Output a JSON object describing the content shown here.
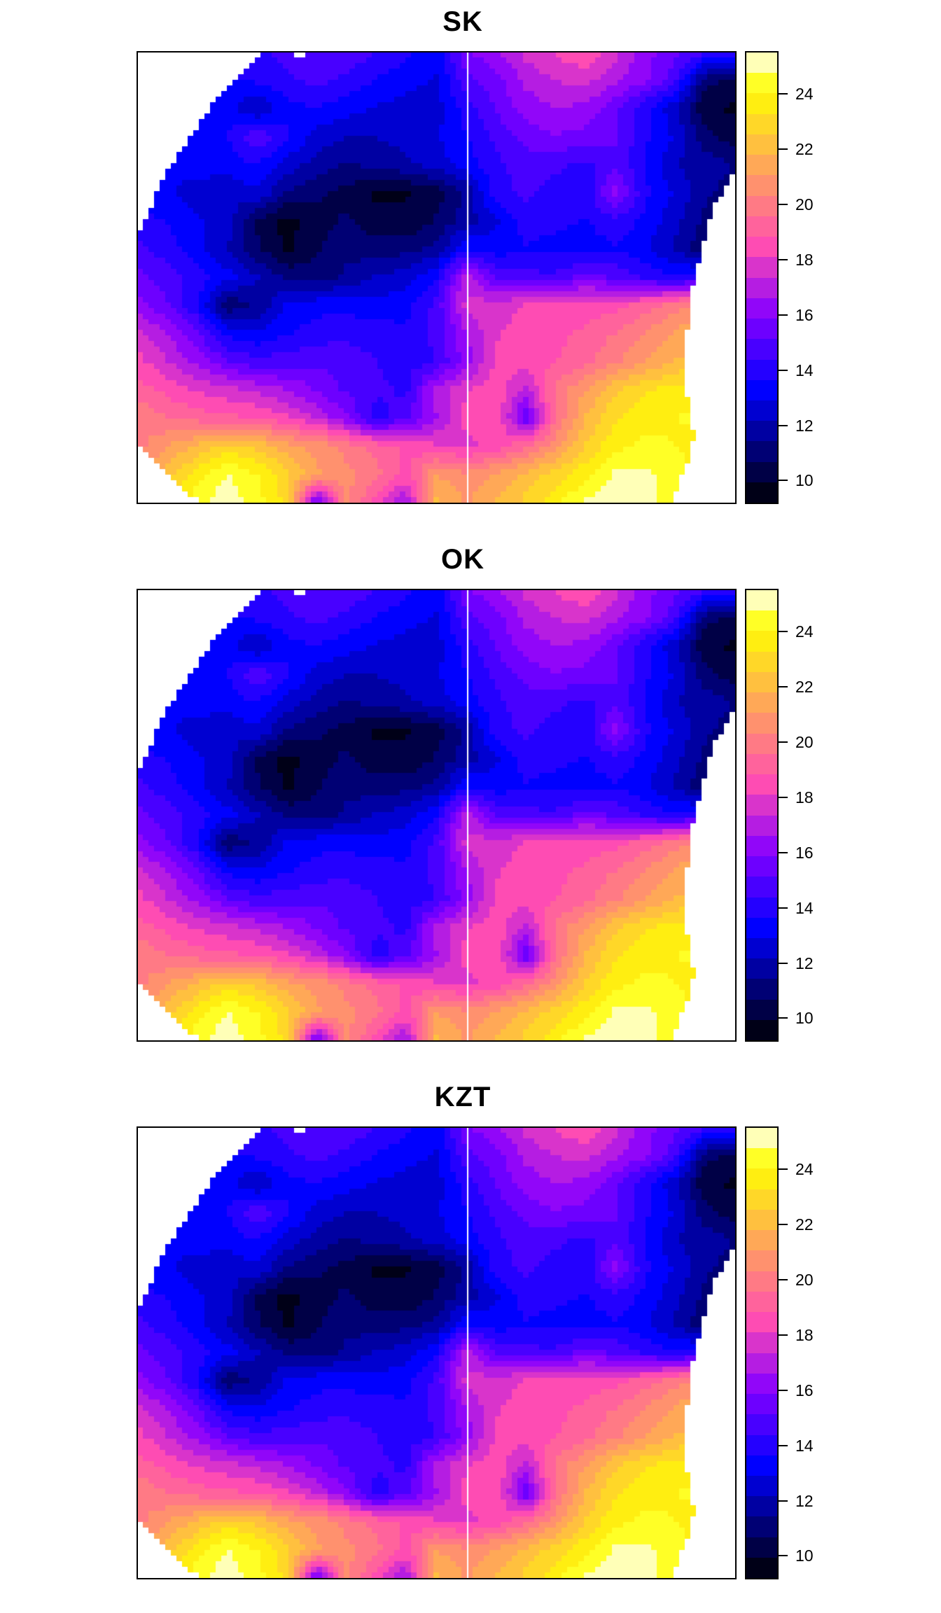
{
  "page": {
    "background": "#FFFFFF",
    "text_color": "#000000"
  },
  "panels": [
    {
      "title": "SK"
    },
    {
      "title": "OK"
    },
    {
      "title": "KZT"
    }
  ],
  "chart_data": {
    "type": "heatmap",
    "panel_titles": [
      "SK",
      "OK",
      "KZT"
    ],
    "description_of_content": "Three stacked kriging-style interpolated temperature surfaces over the same irregular region, each with identical color legend",
    "legend_position": "right",
    "value_min": 9.2,
    "value_max": 25.5,
    "colorbar": {
      "tick_values": [
        10,
        12,
        14,
        16,
        18,
        20,
        22,
        24
      ],
      "tick_labels": [
        "10",
        "12",
        "14",
        "16",
        "18",
        "20",
        "22",
        "24"
      ],
      "n_levels": 22,
      "level_colors": [
        "#000017",
        "#000046",
        "#000074",
        "#0000A2",
        "#0000D1",
        "#0000FF",
        "#2400FF",
        "#4800FF",
        "#6D00FF",
        "#9106F9",
        "#B51DE2",
        "#D934CB",
        "#FE4CB3",
        "#FF639C",
        "#FF7A85",
        "#FF916E",
        "#FFA857",
        "#FFC03F",
        "#FFD728",
        "#FFEE11",
        "#FFFF26",
        "#FFFFB7"
      ]
    },
    "divider_line_u": 0.551,
    "divider_line_color": "#FFFFFF",
    "grid": {
      "cols": 21,
      "rows": 17,
      "values": [
        [
          14.0,
          14.0,
          13.8,
          13.8,
          14.0,
          14.8,
          15.2,
          15.0,
          14.4,
          13.8,
          13.2,
          15.8,
          16.4,
          17.6,
          18.2,
          18.8,
          17.6,
          16.2,
          15.4,
          14.6,
          14.2
        ],
        [
          13.5,
          13.5,
          13.5,
          13.6,
          13.8,
          14.2,
          14.6,
          14.2,
          13.6,
          13.2,
          12.8,
          14.8,
          15.6,
          16.8,
          17.4,
          17.6,
          16.8,
          16.0,
          14.6,
          11.0,
          10.4
        ],
        [
          13.2,
          13.2,
          13.2,
          13.4,
          12.0,
          13.4,
          13.6,
          13.2,
          12.8,
          12.6,
          12.6,
          14.0,
          15.2,
          16.2,
          16.6,
          16.4,
          15.4,
          13.8,
          12.4,
          10.0,
          9.8
        ],
        [
          13.0,
          13.0,
          13.2,
          13.6,
          15.0,
          13.8,
          12.6,
          12.2,
          12.2,
          12.4,
          12.8,
          13.6,
          14.6,
          15.4,
          15.8,
          15.6,
          15.2,
          13.8,
          12.8,
          11.0,
          10.2
        ],
        [
          12.8,
          13.0,
          13.2,
          13.4,
          13.6,
          12.6,
          11.8,
          11.4,
          11.6,
          12.0,
          12.6,
          13.2,
          14.2,
          14.8,
          14.6,
          14.2,
          15.0,
          13.6,
          12.2,
          11.8,
          11.4
        ],
        [
          13.4,
          13.0,
          12.6,
          12.2,
          12.8,
          11.4,
          10.8,
          10.4,
          9.8,
          9.9,
          10.2,
          11.6,
          14.0,
          14.6,
          14.0,
          13.8,
          16.2,
          13.8,
          12.8,
          11.6,
          11.0
        ],
        [
          14.0,
          13.6,
          13.0,
          12.6,
          10.6,
          9.6,
          10.4,
          10.8,
          10.2,
          10.0,
          10.8,
          11.8,
          12.8,
          14.0,
          13.8,
          13.6,
          14.2,
          13.4,
          12.4,
          11.2,
          10.6
        ],
        [
          14.6,
          14.0,
          13.2,
          12.2,
          10.8,
          9.8,
          10.6,
          11.2,
          11.0,
          11.2,
          11.6,
          13.6,
          13.2,
          13.6,
          13.4,
          13.2,
          13.6,
          13.0,
          12.0,
          10.8,
          10.2
        ],
        [
          15.4,
          14.8,
          14.0,
          13.2,
          12.2,
          11.2,
          11.0,
          11.6,
          12.2,
          12.6,
          13.6,
          17.2,
          15.0,
          14.6,
          14.6,
          15.6,
          15.0,
          14.2,
          13.8,
          14.0,
          13.0
        ],
        [
          16.2,
          15.2,
          13.8,
          10.8,
          11.6,
          13.0,
          13.4,
          13.4,
          13.2,
          13.4,
          14.6,
          17.6,
          17.8,
          18.2,
          18.4,
          18.4,
          18.6,
          19.2,
          20.0,
          20.8,
          21.0
        ],
        [
          17.6,
          16.6,
          15.2,
          13.4,
          13.0,
          13.6,
          14.0,
          14.2,
          14.0,
          13.8,
          14.6,
          16.6,
          18.0,
          18.4,
          18.6,
          19.0,
          19.6,
          20.4,
          21.2,
          21.8,
          22.2
        ],
        [
          18.4,
          17.4,
          16.4,
          15.2,
          14.6,
          14.8,
          15.0,
          14.8,
          14.4,
          14.0,
          14.4,
          16.2,
          18.2,
          18.6,
          18.8,
          19.4,
          20.2,
          21.0,
          21.8,
          22.4,
          22.8
        ],
        [
          19.2,
          18.6,
          18.0,
          17.6,
          17.2,
          16.6,
          15.8,
          15.0,
          14.6,
          14.2,
          17.0,
          18.0,
          18.6,
          17.0,
          19.8,
          21.0,
          22.4,
          23.2,
          23.6,
          23.8,
          23.8
        ],
        [
          20.2,
          19.6,
          19.2,
          19.0,
          18.8,
          18.2,
          17.2,
          16.0,
          13.9,
          15.0,
          16.5,
          18.4,
          18.8,
          15.2,
          19.6,
          21.8,
          23.2,
          23.8,
          24.0,
          24.2,
          24.2
        ],
        [
          20.0,
          21.0,
          21.9,
          22.8,
          22.3,
          21.3,
          20.8,
          20.0,
          19.3,
          18.6,
          18.2,
          17.8,
          18.4,
          19.4,
          20.8,
          22.6,
          23.8,
          24.2,
          24.0,
          23.6,
          23.4
        ],
        [
          20.0,
          22.2,
          23.6,
          24.8,
          24.0,
          22.8,
          21.2,
          20.6,
          19.8,
          18.6,
          21.0,
          20.5,
          21.2,
          22.0,
          22.8,
          23.8,
          24.9,
          24.9,
          24.4,
          23.8,
          23.2
        ],
        [
          21.0,
          23.2,
          24.6,
          25.3,
          24.4,
          23.0,
          15.0,
          20.5,
          18.5,
          16.5,
          22.0,
          21.0,
          21.8,
          22.8,
          23.8,
          24.9,
          25.4,
          25.0,
          24.4,
          23.8,
          23.2
        ]
      ]
    },
    "region_mask_polygon": [
      [
        0.215,
        0.0
      ],
      [
        0.259,
        0.0
      ],
      [
        0.259,
        0.016
      ],
      [
        0.284,
        0.016
      ],
      [
        0.284,
        0.0
      ],
      [
        1.0,
        0.0
      ],
      [
        1.0,
        0.268
      ],
      [
        0.965,
        0.34
      ],
      [
        0.95,
        0.41
      ],
      [
        0.938,
        0.47
      ],
      [
        0.928,
        0.53
      ],
      [
        0.921,
        0.6
      ],
      [
        0.918,
        0.68
      ],
      [
        0.919,
        0.75
      ],
      [
        0.924,
        0.8
      ],
      [
        0.932,
        0.85
      ],
      [
        0.926,
        0.9
      ],
      [
        0.908,
        0.945
      ],
      [
        0.898,
        1.0
      ],
      [
        0.105,
        1.0
      ],
      [
        0.062,
        0.953
      ],
      [
        0.027,
        0.906
      ],
      [
        0.0,
        0.87
      ],
      [
        0.0,
        0.408
      ],
      [
        0.015,
        0.37
      ],
      [
        0.033,
        0.306
      ],
      [
        0.059,
        0.246
      ],
      [
        0.089,
        0.186
      ],
      [
        0.127,
        0.113
      ],
      [
        0.169,
        0.053
      ]
    ]
  }
}
